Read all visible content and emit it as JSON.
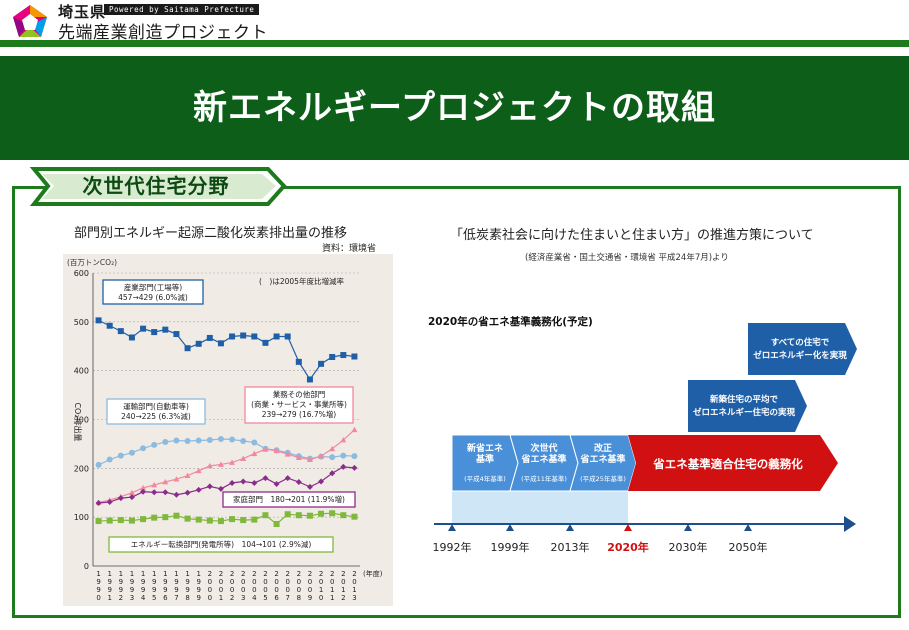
{
  "header": {
    "prefecture": "埼玉県",
    "powered": "Powered by Saitama Prefecture",
    "project_name": "先端産業創造プロジェクト"
  },
  "banner": {
    "title": "新エネルギープロジェクトの取組"
  },
  "section": {
    "tab_label": "次世代住宅分野"
  },
  "left_panel": {
    "title": "部門別エネルギー起源二酸化炭素排出量の推移",
    "source": "資料：環境省"
  },
  "right_panel": {
    "title": "「低炭素社会に向けた住まいと住まい方」の推進方策について",
    "subtitle": "(経済産業省・国土交通省・環境省 平成24年7月)より",
    "timeline_title": "2020年の省エネ基準義務化(予定)"
  },
  "colors": {
    "green_dark": "#0c5e18",
    "green_border": "#1d7a1d",
    "blue_series": "#1f5fa8",
    "light_blue_series": "#8cbbe0",
    "pink_series": "#f2889e",
    "purple_series": "#8a2d8a",
    "green_series": "#7fb83a",
    "arrow_light": "#4a90d9",
    "arrow_dark": "#1f5fa8",
    "arrow_red": "#d11111"
  },
  "chart_data": {
    "type": "line",
    "ylabel": "CO₂排出量",
    "unit_label": "(百万トンCO₂)",
    "ylim": [
      0,
      600
    ],
    "yticks": [
      "0",
      "100",
      "200",
      "300",
      "400",
      "500",
      "600"
    ],
    "xlabel_suffix": "(年度)",
    "x": [
      "1990",
      "1991",
      "1992",
      "1993",
      "1994",
      "1995",
      "1996",
      "1997",
      "1998",
      "1999",
      "2000",
      "2001",
      "2002",
      "2003",
      "2004",
      "2005",
      "2006",
      "2007",
      "2008",
      "2009",
      "2010",
      "2011",
      "2012",
      "2013"
    ],
    "note": "(　)は2005年度比増減率",
    "series": [
      {
        "name": "産業部門(工場等)",
        "change": "457→429 (6.0%減)",
        "color": "#1f5fa8",
        "marker": "square",
        "values": [
          503,
          492,
          481,
          468,
          486,
          479,
          484,
          475,
          446,
          455,
          467,
          456,
          470,
          472,
          470,
          457,
          470,
          470,
          418,
          382,
          414,
          428,
          432,
          429
        ]
      },
      {
        "name": "運輸部門(自動車等)",
        "change": "240→225 (6.3%減)",
        "color": "#8cbbe0",
        "marker": "circle",
        "values": [
          207,
          218,
          226,
          232,
          241,
          248,
          254,
          257,
          256,
          257,
          258,
          260,
          259,
          256,
          253,
          240,
          237,
          232,
          225,
          220,
          224,
          223,
          226,
          225
        ]
      },
      {
        "name": "業務その他部門(商業・サービス・事業所等)",
        "change": "239→279 (16.7%増)",
        "color": "#f2889e",
        "marker": "triangle",
        "values": [
          130,
          135,
          142,
          150,
          160,
          166,
          172,
          178,
          185,
          195,
          205,
          208,
          212,
          220,
          230,
          239,
          236,
          229,
          222,
          218,
          225,
          240,
          258,
          279
        ]
      },
      {
        "name": "家庭部門",
        "change": "180→201 (11.9%増)",
        "color": "#8a2d8a",
        "marker": "diamond",
        "values": [
          129,
          131,
          139,
          141,
          152,
          151,
          151,
          146,
          150,
          156,
          163,
          158,
          170,
          173,
          170,
          180,
          168,
          180,
          172,
          162,
          173,
          190,
          203,
          201
        ]
      },
      {
        "name": "エネルギー転換部門(発電所等)",
        "change": "104→101 (2.9%減)",
        "color": "#7fb83a",
        "marker": "square",
        "values": [
          92,
          93,
          94,
          93,
          96,
          99,
          100,
          103,
          97,
          95,
          93,
          92,
          96,
          94,
          95,
          104,
          86,
          106,
          104,
          103,
          107,
          108,
          104,
          101
        ]
      }
    ]
  },
  "timeline": {
    "years": [
      {
        "label": "1992年",
        "highlight": false
      },
      {
        "label": "1999年",
        "highlight": false
      },
      {
        "label": "2013年",
        "highlight": false
      },
      {
        "label": "2020年",
        "highlight": true
      },
      {
        "label": "2030年",
        "highlight": false
      },
      {
        "label": "2050年",
        "highlight": false
      }
    ],
    "steps": [
      {
        "lines": [
          "新省エネ",
          "基準"
        ],
        "sub": "(平成4年基準)"
      },
      {
        "lines": [
          "次世代",
          "省エネ基準"
        ],
        "sub": "(平成11年基準)"
      },
      {
        "lines": [
          "改正",
          "省エネ基準"
        ],
        "sub": "(平成25年基準)"
      }
    ],
    "mandatory": "省エネ基準適合住宅の義務化",
    "zeh_new": [
      "新築住宅の平均で",
      "ゼロエネルギー住宅の実現"
    ],
    "zeh_all": [
      "すべての住宅で",
      "ゼロエネルギー化を実現"
    ]
  }
}
